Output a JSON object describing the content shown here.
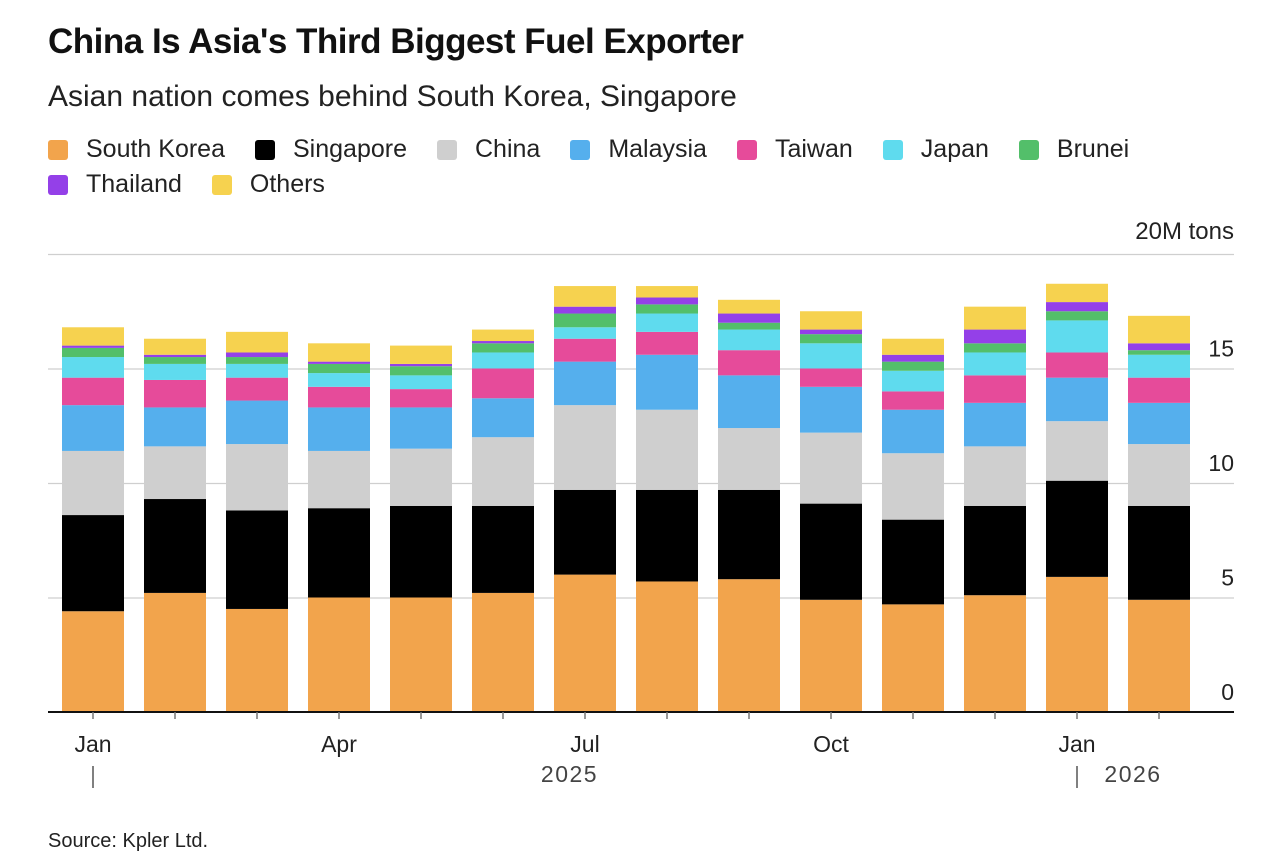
{
  "header": {
    "title": "China Is Asia's Third Biggest Fuel Exporter",
    "subtitle": "Asian nation comes behind South Korea, Singapore"
  },
  "legend": [
    [
      {
        "label": "South Korea",
        "color": "#f2a44c"
      },
      {
        "label": "Singapore",
        "color": "#000000"
      },
      {
        "label": "China",
        "color": "#cfcfcf"
      },
      {
        "label": "Malaysia",
        "color": "#55afed"
      },
      {
        "label": "Taiwan",
        "color": "#e64b9a"
      },
      {
        "label": "Japan",
        "color": "#5fdbee"
      },
      {
        "label": "Brunei",
        "color": "#53bf6a"
      }
    ],
    [
      {
        "label": "Thailand",
        "color": "#9440e8"
      },
      {
        "label": "Others",
        "color": "#f6d24f"
      }
    ]
  ],
  "unit_label": "20M tons",
  "source": "Source: Kpler Ltd.",
  "chart_data": {
    "type": "bar",
    "stacked": true,
    "title": "China Is Asia's Third Biggest Fuel Exporter",
    "subtitle": "Asian nation comes behind South Korea, Singapore",
    "ylabel": "20M tons",
    "ylim": [
      0,
      20
    ],
    "yticks": [
      0,
      5,
      10,
      15
    ],
    "grid": true,
    "legend_position": "top",
    "categories": [
      "Jan 2025",
      "Feb 2025",
      "Mar 2025",
      "Apr 2025",
      "May 2025",
      "Jun 2025",
      "Jul 2025",
      "Aug 2025",
      "Sep 2025",
      "Oct 2025",
      "Nov 2025",
      "Dec 2025",
      "Jan 2026",
      "Feb 2026"
    ],
    "x_tick_labels": [
      {
        "index": 0,
        "label": "Jan"
      },
      {
        "index": 3,
        "label": "Apr"
      },
      {
        "index": 6,
        "label": "Jul"
      },
      {
        "index": 9,
        "label": "Oct"
      },
      {
        "index": 12,
        "label": "Jan"
      }
    ],
    "year_labels": [
      {
        "start_index": 0,
        "label": "2025"
      },
      {
        "start_index": 12,
        "label": "2026"
      }
    ],
    "series": [
      {
        "name": "South Korea",
        "color": "#f2a44c",
        "values": [
          4.4,
          5.2,
          4.5,
          5.0,
          5.0,
          5.2,
          6.0,
          5.7,
          5.8,
          4.9,
          4.7,
          5.1,
          5.9,
          4.9
        ]
      },
      {
        "name": "Singapore",
        "color": "#000000",
        "values": [
          4.2,
          4.1,
          4.3,
          3.9,
          4.0,
          3.8,
          3.7,
          4.0,
          3.9,
          4.2,
          3.7,
          3.9,
          4.2,
          4.1
        ]
      },
      {
        "name": "China",
        "color": "#cfcfcf",
        "values": [
          2.8,
          2.3,
          2.9,
          2.5,
          2.5,
          3.0,
          3.7,
          3.5,
          2.7,
          3.1,
          2.9,
          2.6,
          2.6,
          2.7
        ]
      },
      {
        "name": "Malaysia",
        "color": "#55afed",
        "values": [
          2.0,
          1.7,
          1.9,
          1.9,
          1.8,
          1.7,
          1.9,
          2.4,
          2.3,
          2.0,
          1.9,
          1.9,
          1.9,
          1.8
        ]
      },
      {
        "name": "Taiwan",
        "color": "#e64b9a",
        "values": [
          1.2,
          1.2,
          1.0,
          0.9,
          0.8,
          1.3,
          1.0,
          1.0,
          1.1,
          0.8,
          0.8,
          1.2,
          1.1,
          1.1
        ]
      },
      {
        "name": "Japan",
        "color": "#5fdbee",
        "values": [
          0.9,
          0.7,
          0.6,
          0.6,
          0.6,
          0.7,
          0.5,
          0.8,
          0.9,
          1.1,
          0.9,
          1.0,
          1.4,
          1.0
        ]
      },
      {
        "name": "Brunei",
        "color": "#53bf6a",
        "values": [
          0.4,
          0.3,
          0.3,
          0.4,
          0.4,
          0.4,
          0.6,
          0.4,
          0.3,
          0.4,
          0.4,
          0.4,
          0.4,
          0.2
        ]
      },
      {
        "name": "Thailand",
        "color": "#9440e8",
        "values": [
          0.1,
          0.1,
          0.2,
          0.1,
          0.1,
          0.1,
          0.3,
          0.3,
          0.4,
          0.2,
          0.3,
          0.6,
          0.4,
          0.3
        ]
      },
      {
        "name": "Others",
        "color": "#f6d24f",
        "values": [
          0.8,
          0.7,
          0.9,
          0.8,
          0.8,
          0.5,
          0.9,
          0.5,
          0.6,
          0.8,
          0.7,
          1.0,
          0.8,
          1.2
        ]
      }
    ]
  }
}
